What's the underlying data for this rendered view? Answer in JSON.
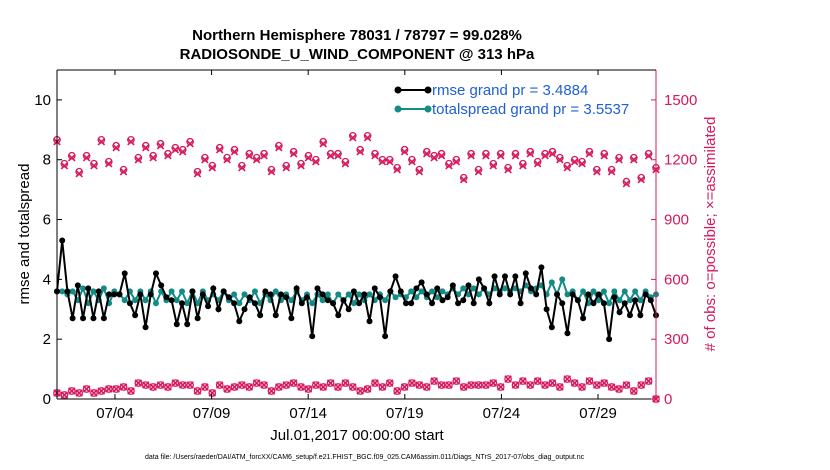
{
  "chart_data": {
    "type": "line",
    "title_line1": "Northern Hemisphere 78031 / 78797 = 99.028%",
    "title_line2": "RADIOSONDE_U_WIND_COMPONENT @ 313 hPa",
    "ylabel_left": "rmse and totalspread",
    "ylabel_right": "# of obs: o=possible; ×=assimilated",
    "xlabel": "Jul.01,2017 00:00:00 start",
    "footnote": "data file: /Users/raeder/DAI/ATM_forcXX/CAM6_setup/f.e21.FHIST_BGC.f09_025.CAM6assim.011/Diags_NTrS_2017-07/obs_diag_output.nc",
    "xlim": [
      1.0,
      32.0
    ],
    "ylim_left": [
      0,
      11
    ],
    "ylim_right": [
      0,
      1650
    ],
    "yticks_left": [
      0,
      2,
      4,
      6,
      8,
      10
    ],
    "yticks_right": [
      0,
      300,
      600,
      900,
      1200,
      1500
    ],
    "xtick_values": [
      4,
      9,
      14,
      19,
      24,
      29
    ],
    "xtick_labels": [
      "07/04",
      "07/09",
      "07/14",
      "07/19",
      "07/24",
      "07/29"
    ],
    "colors": {
      "rmse": "#000000",
      "spread": "#138b87",
      "obs": "#d6185e",
      "legend_text": "#1f5fd6"
    },
    "series": [
      {
        "name": "rmse grand pr = 3.4884",
        "values": [
          3.6,
          5.3,
          3.6,
          2.7,
          3.8,
          2.7,
          3.7,
          2.7,
          3.6,
          2.7,
          3.5,
          3.5,
          3.5,
          4.2,
          3.2,
          2.8,
          3.5,
          2.4,
          3.5,
          4.2,
          3.8,
          3.4,
          3.3,
          2.5,
          3.2,
          2.5,
          3.6,
          2.7,
          3.5,
          3.1,
          3.7,
          3.0,
          3.6,
          3.4,
          3.2,
          2.6,
          3.0,
          3.4,
          3.2,
          2.8,
          3.6,
          3.5,
          2.8,
          3.5,
          3.4,
          2.7,
          3.7,
          3.2,
          3.4,
          2.1,
          3.7,
          3.5,
          3.3,
          3.2,
          2.8,
          3.3,
          3.0,
          3.6,
          3.2,
          3.5,
          2.6,
          3.7,
          3.4,
          2.1,
          3.6,
          4.1,
          3.6,
          3.2,
          3.2,
          3.7,
          3.9,
          3.5,
          3.2,
          3.7,
          3.3,
          3.4,
          3.8,
          3.2,
          3.3,
          3.8,
          3.2,
          4.0,
          3.7,
          3.2,
          4.1,
          3.5,
          4.1,
          3.5,
          4.1,
          3.2,
          4.2,
          3.7,
          3.5,
          4.4,
          3.0,
          2.4,
          3.5,
          3.2,
          2.2,
          3.5,
          3.3,
          2.7,
          3.5,
          3.2,
          3.5,
          3.2,
          2.0,
          3.4,
          2.9,
          3.2,
          2.8,
          3.3,
          2.8,
          3.5,
          3.3,
          2.8
        ],
        "markers": "filled circle"
      },
      {
        "name": "totalspread grand pr = 3.5537",
        "values": [
          3.6,
          3.6,
          3.5,
          3.6,
          3.3,
          3.7,
          3.2,
          3.6,
          3.3,
          3.7,
          3.2,
          3.6,
          3.5,
          3.3,
          3.6,
          3.3,
          3.6,
          3.3,
          3.6,
          3.2,
          3.6,
          3.3,
          3.6,
          3.3,
          3.6,
          3.2,
          3.6,
          3.2,
          3.6,
          3.3,
          3.5,
          3.3,
          3.6,
          3.3,
          3.5,
          3.2,
          3.5,
          3.3,
          3.6,
          3.2,
          3.5,
          3.3,
          3.6,
          3.3,
          3.5,
          3.3,
          3.6,
          3.3,
          3.5,
          3.2,
          3.5,
          3.3,
          3.5,
          3.2,
          3.5,
          3.3,
          3.5,
          3.2,
          3.5,
          3.3,
          3.5,
          3.3,
          3.5,
          3.3,
          3.6,
          3.4,
          3.5,
          3.4,
          3.6,
          3.4,
          3.6,
          3.4,
          3.6,
          3.4,
          3.6,
          3.5,
          3.7,
          3.5,
          3.7,
          3.5,
          3.7,
          3.5,
          3.7,
          3.5,
          3.7,
          3.6,
          3.7,
          3.6,
          3.7,
          3.6,
          3.8,
          3.6,
          3.7,
          3.8,
          3.5,
          3.9,
          3.5,
          4.0,
          3.5,
          3.6,
          3.3,
          3.6,
          3.2,
          3.6,
          3.3,
          3.6,
          3.2,
          3.6,
          3.3,
          3.6,
          3.3,
          3.6,
          3.3,
          3.6,
          3.4,
          3.5
        ],
        "markers": "filled circle"
      }
    ],
    "obs_possible_upper": [
      1300,
      1180,
      1220,
      1140,
      1220,
      1180,
      1300,
      1190,
      1270,
      1150,
      1300,
      1210,
      1270,
      1220,
      1280,
      1230,
      1260,
      1250,
      1290,
      1140,
      1210,
      1170,
      1260,
      1210,
      1250,
      1170,
      1230,
      1210,
      1230,
      1150,
      1270,
      1170,
      1240,
      1180,
      1220,
      1200,
      1290,
      1230,
      1230,
      1190,
      1320,
      1250,
      1320,
      1230,
      1200,
      1200,
      1160,
      1250,
      1200,
      1150,
      1240,
      1220,
      1230,
      1180,
      1200,
      1110,
      1230,
      1150,
      1230,
      1180,
      1230,
      1160,
      1230,
      1180,
      1240,
      1190,
      1230,
      1240,
      1210,
      1170,
      1200,
      1190,
      1240,
      1150,
      1230,
      1150,
      1210,
      1090,
      1210,
      1110,
      1230,
      1160
    ],
    "obs_assimilated_upper": [
      1290,
      1170,
      1210,
      1130,
      1210,
      1170,
      1290,
      1180,
      1260,
      1140,
      1290,
      1200,
      1260,
      1210,
      1270,
      1220,
      1250,
      1240,
      1280,
      1130,
      1200,
      1160,
      1250,
      1200,
      1240,
      1160,
      1220,
      1200,
      1220,
      1140,
      1260,
      1160,
      1230,
      1170,
      1210,
      1190,
      1280,
      1220,
      1220,
      1180,
      1310,
      1240,
      1310,
      1220,
      1190,
      1190,
      1150,
      1240,
      1190,
      1140,
      1230,
      1210,
      1220,
      1170,
      1190,
      1100,
      1220,
      1140,
      1220,
      1170,
      1220,
      1150,
      1220,
      1170,
      1230,
      1180,
      1220,
      1230,
      1200,
      1160,
      1190,
      1180,
      1230,
      1140,
      1220,
      1140,
      1200,
      1080,
      1200,
      1100,
      1220,
      1150
    ],
    "obs_lower": [
      30,
      20,
      40,
      30,
      50,
      30,
      40,
      50,
      50,
      60,
      40,
      80,
      70,
      60,
      70,
      60,
      80,
      70,
      70,
      40,
      60,
      30,
      70,
      50,
      60,
      70,
      60,
      80,
      70,
      40,
      60,
      70,
      80,
      60,
      50,
      70,
      60,
      80,
      60,
      80,
      60,
      40,
      50,
      80,
      60,
      80,
      40,
      60,
      80,
      70,
      60,
      90,
      70,
      70,
      90,
      60,
      70,
      70,
      70,
      80,
      60,
      100,
      70,
      90,
      70,
      90,
      70,
      80,
      60,
      100,
      80,
      60,
      90,
      70,
      80,
      60,
      50,
      70,
      40,
      70,
      90,
      0
    ]
  }
}
